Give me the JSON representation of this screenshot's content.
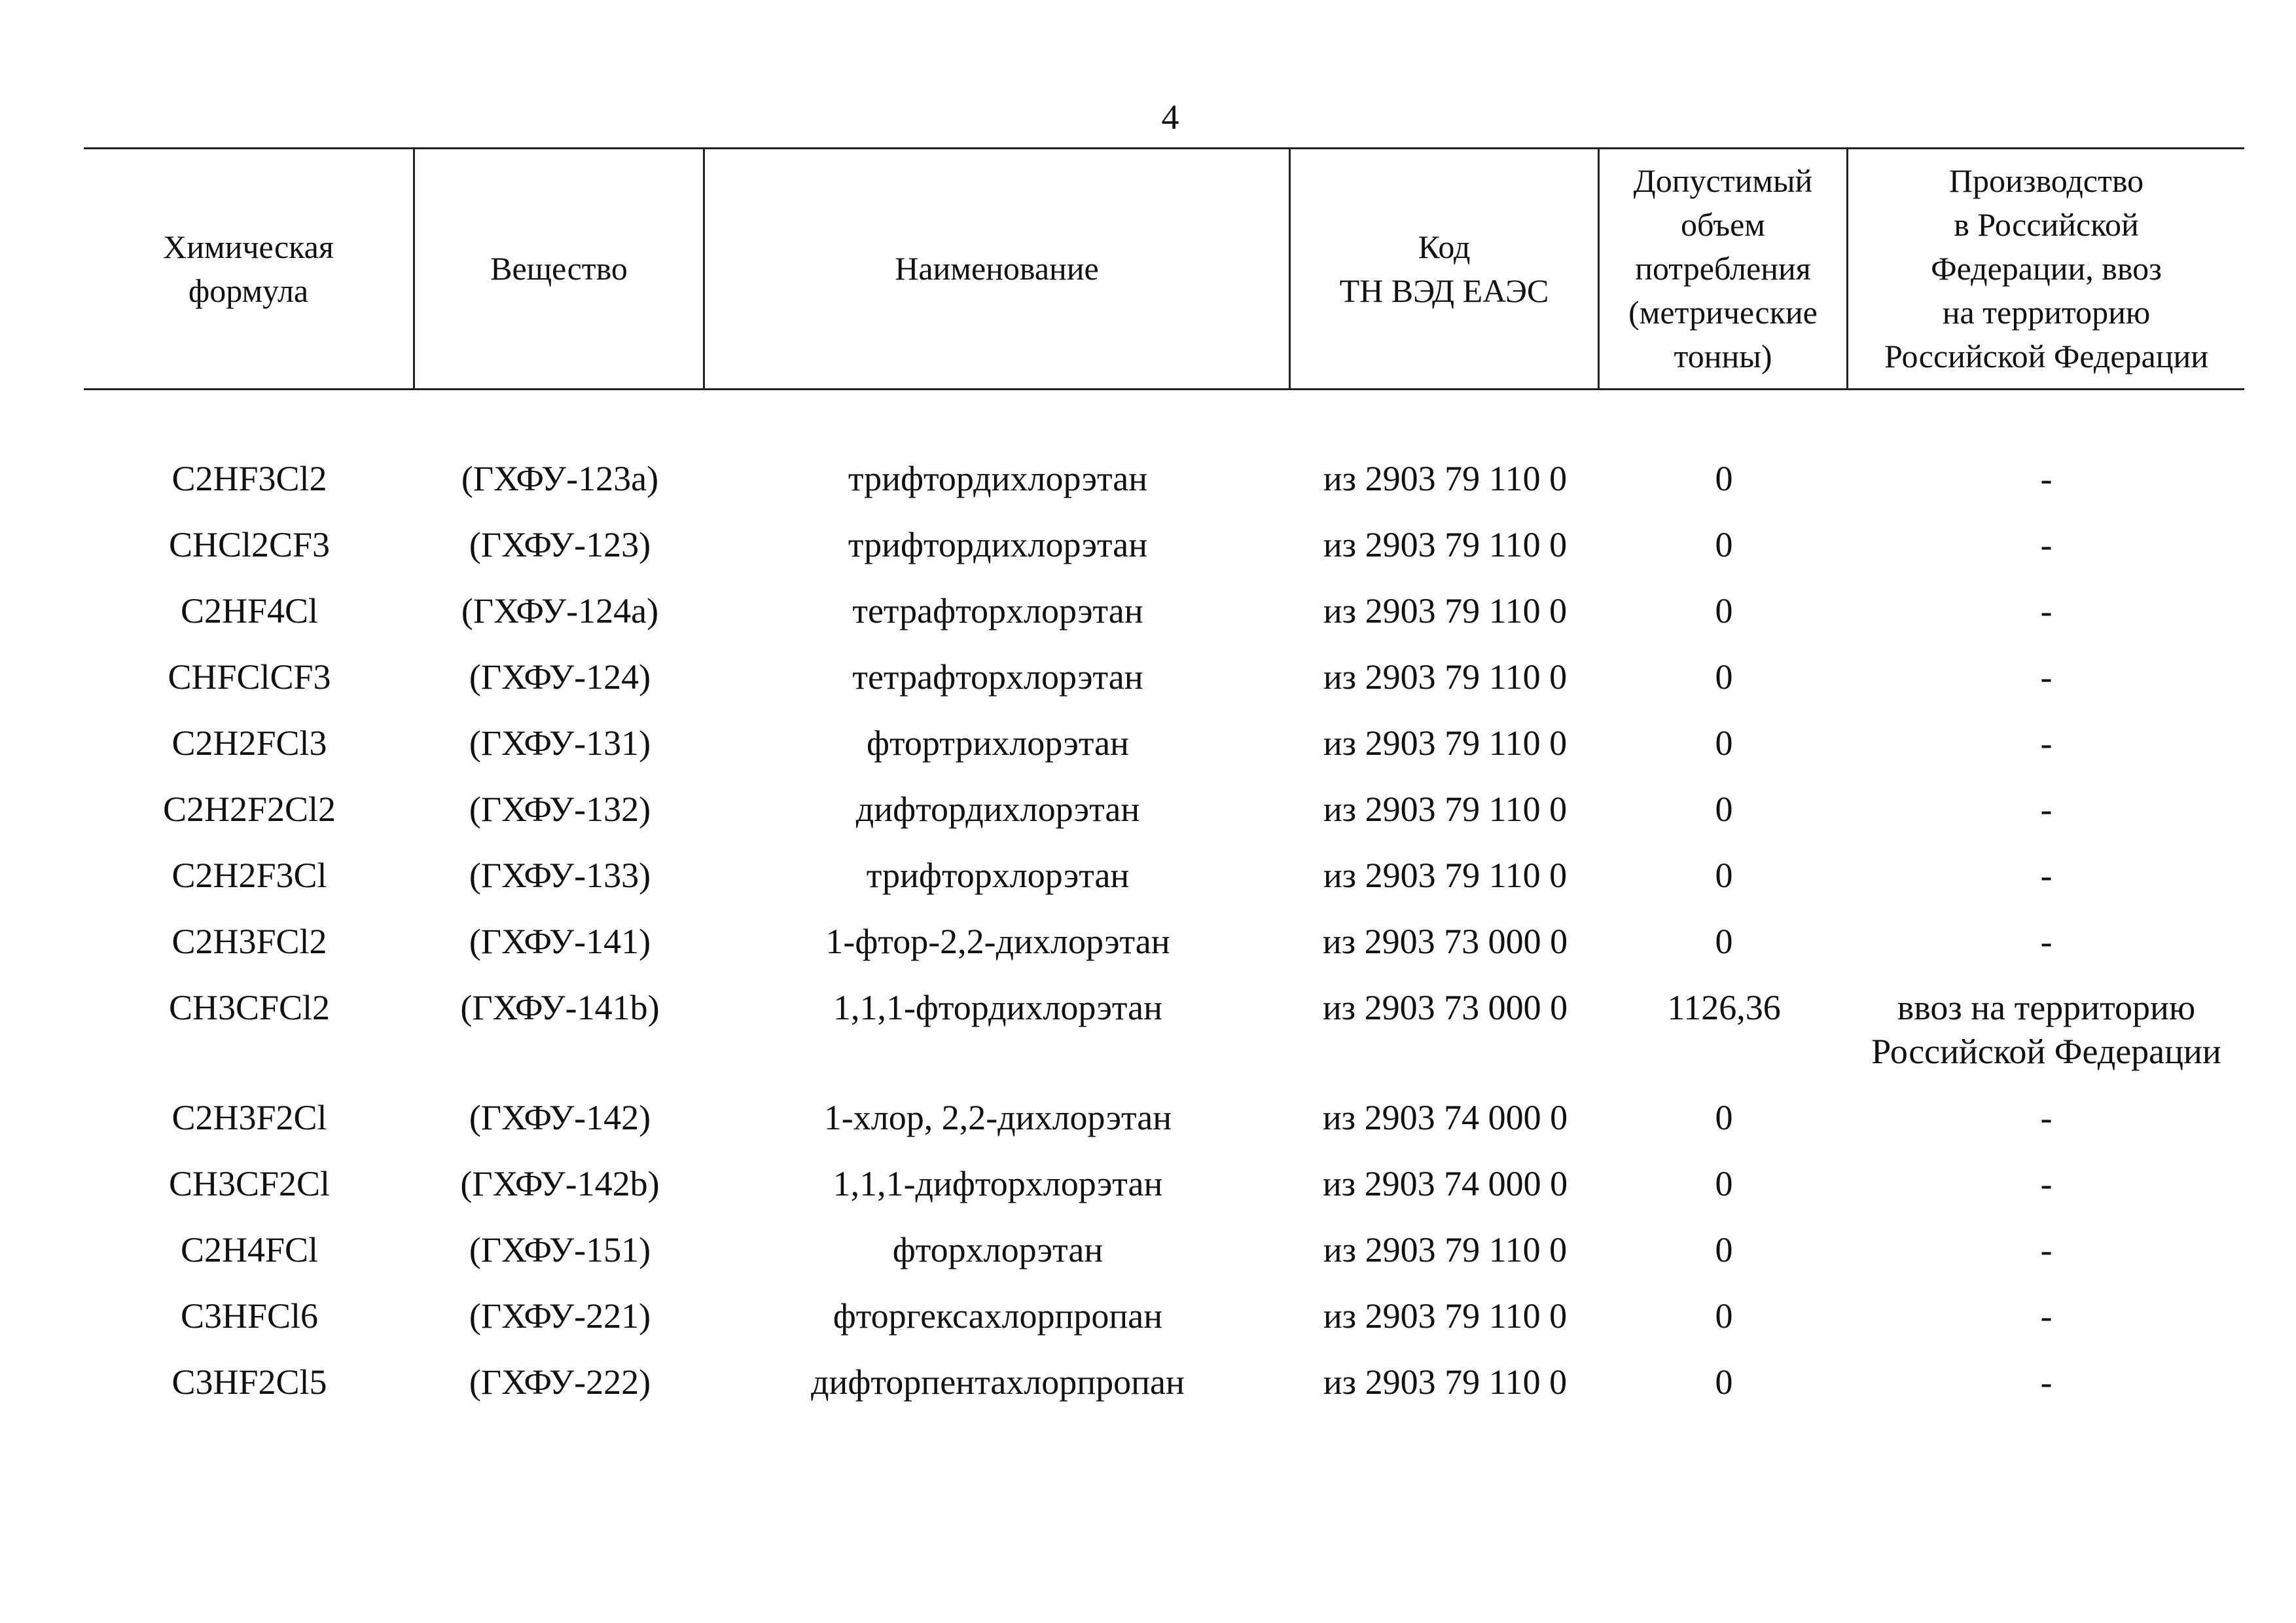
{
  "page_number": "4",
  "table": {
    "header": [
      [
        "Химическая",
        "формула"
      ],
      [
        "Вещество"
      ],
      [
        "Наименование"
      ],
      [
        "Код",
        "ТН ВЭД ЕАЭС"
      ],
      [
        "Допустимый",
        "объем",
        "потребления",
        "(метрические",
        "тонны)"
      ],
      [
        "Производство",
        "в Российской",
        "Федерации, ввоз",
        "на территорию",
        "Российской Федерации"
      ]
    ],
    "rows": [
      [
        "C2HF3Cl2",
        "(ГХФУ-123a)",
        "трифтордихлорэтан",
        "из 2903 79 110 0",
        "0",
        "-"
      ],
      [
        "CHCl2CF3",
        "(ГХФУ-123)",
        "трифтордихлорэтан",
        "из 2903 79 110 0",
        "0",
        "-"
      ],
      [
        "C2HF4Cl",
        "(ГХФУ-124a)",
        "тетрафторхлорэтан",
        "из 2903 79 110 0",
        "0",
        "-"
      ],
      [
        "CHFClCF3",
        "(ГХФУ-124)",
        "тетрафторхлорэтан",
        "из 2903 79 110 0",
        "0",
        "-"
      ],
      [
        "C2H2FCl3",
        "(ГХФУ-131)",
        "фтортрихлорэтан",
        "из 2903 79 110 0",
        "0",
        "-"
      ],
      [
        "C2H2F2Cl2",
        "(ГХФУ-132)",
        "дифтордихлорэтан",
        "из 2903 79 110 0",
        "0",
        "-"
      ],
      [
        "C2H2F3Cl",
        "(ГХФУ-133)",
        "трифторхлорэтан",
        "из 2903 79 110 0",
        "0",
        "-"
      ],
      [
        "C2H3FCl2",
        "(ГХФУ-141)",
        "1-фтор-2,2-дихлорэтан",
        "из 2903 73 000 0",
        "0",
        "-"
      ],
      [
        "CH3CFCl2",
        "(ГХФУ-141b)",
        "1,1,1-фтордихлорэтан",
        "из 2903 73 000 0",
        "1126,36",
        "ввоз на территорию Российской Федерации"
      ],
      [
        "C2H3F2Cl",
        "(ГХФУ-142)",
        "1-хлор, 2,2-дихлорэтан",
        "из 2903 74 000 0",
        "0",
        "-"
      ],
      [
        "CH3CF2Cl",
        "(ГХФУ-142b)",
        "1,1,1-дифторхлорэтан",
        "из 2903 74 000 0",
        "0",
        "-"
      ],
      [
        "C2H4FCl",
        "(ГХФУ-151)",
        "фторхлорэтан",
        "из 2903 79 110 0",
        "0",
        "-"
      ],
      [
        "C3HFCl6",
        "(ГХФУ-221)",
        "фторгексахлорпропан",
        "из 2903 79 110 0",
        "0",
        "-"
      ],
      [
        "C3HF2Cl5",
        "(ГХФУ-222)",
        "дифторпентахлорпропан",
        "из 2903 79 110 0",
        "0",
        "-"
      ]
    ]
  }
}
